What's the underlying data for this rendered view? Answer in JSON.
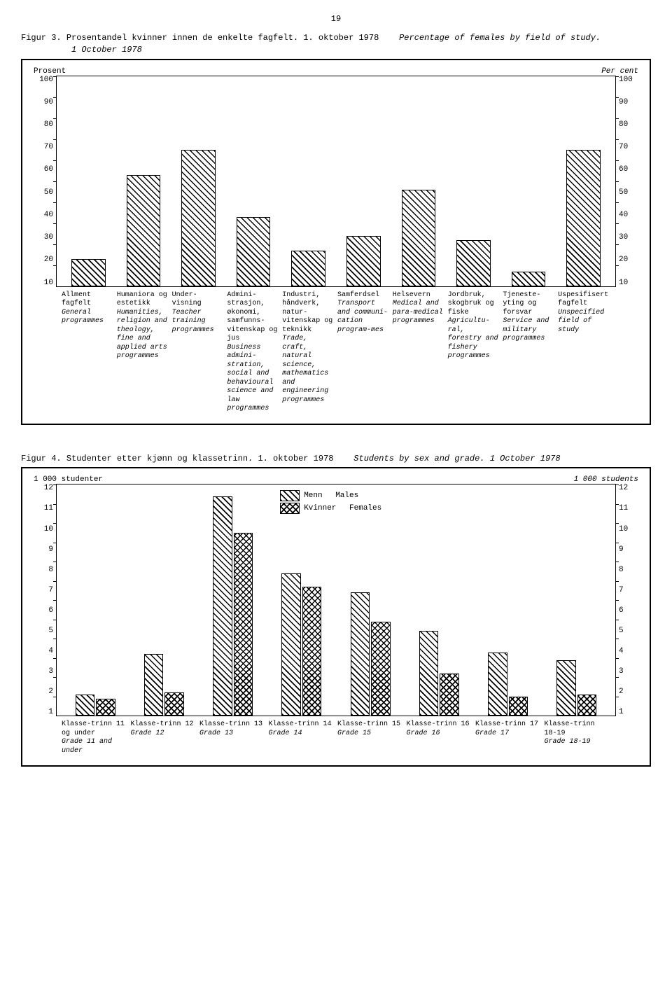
{
  "page_number": "19",
  "figure3": {
    "title_prefix": "Figur 3.",
    "title_main": "Prosentandel kvinner innen de enkelte fagfelt. 1. oktober 1978",
    "title_italic": "Percentage of females by field of study.",
    "subtitle_italic": "1 October 1978",
    "y_left_label": "Prosent",
    "y_right_label": "Per cent",
    "type": "bar",
    "ylim": [
      0,
      100
    ],
    "ytick_step": 10,
    "yticks": [
      "100",
      "90",
      "80",
      "70",
      "60",
      "50",
      "40",
      "30",
      "20",
      "10"
    ],
    "bar_fill": "hatch",
    "bar_border": "#000000",
    "background": "#ffffff",
    "categories": [
      {
        "value": 13,
        "nb": "Allment fagfelt",
        "en": "General programmes"
      },
      {
        "value": 53,
        "nb": "Humaniora og estetikk",
        "en": "Humanities, religion and theology, fine and applied arts programmes"
      },
      {
        "value": 65,
        "nb": "Under-visning",
        "en": "Teacher training programmes"
      },
      {
        "value": 33,
        "nb": "Admini-strasjon, økonomi, samfunns-vitenskap og jus",
        "en": "Business admini-stration, social and behavioural science and law programmes"
      },
      {
        "value": 17,
        "nb": "Industri, håndverk, natur-vitenskap og teknikk",
        "en": "Trade, craft, natural science, mathematics and engineering programmes"
      },
      {
        "value": 24,
        "nb": "Samferdsel",
        "en": "Transport and communi-cation program-mes"
      },
      {
        "value": 46,
        "nb": "Helsevern",
        "en": "Medical and para-medical programmes"
      },
      {
        "value": 22,
        "nb": "Jordbruk, skogbruk og fiske",
        "en": "Agricultu-ral, forestry and fishery programmes"
      },
      {
        "value": 7,
        "nb": "Tjeneste-yting og forsvar",
        "en": "Service and military programmes"
      },
      {
        "value": 65,
        "nb": "Uspesifisert fagfelt",
        "en": "Unspecified field of study"
      }
    ]
  },
  "figure4": {
    "title_prefix": "Figur 4.",
    "title_main": "Studenter etter kjønn og klassetrinn. 1. oktober 1978",
    "title_italic": "Students by sex and grade. 1 October 1978",
    "y_left_label": "1 000 studenter",
    "y_right_label": "1 000 students",
    "type": "grouped-bar",
    "ylim": [
      0,
      12
    ],
    "ytick_step": 1,
    "yticks": [
      "12",
      "11",
      "10",
      "9",
      "8",
      "7",
      "6",
      "5",
      "4",
      "3",
      "2",
      "1"
    ],
    "series": [
      {
        "key": "males",
        "label_nb": "Menn",
        "label_en": "Males",
        "fill": "hatch"
      },
      {
        "key": "females",
        "label_nb": "Kvinner",
        "label_en": "Females",
        "fill": "cross"
      }
    ],
    "bar_border": "#000000",
    "background": "#ffffff",
    "categories": [
      {
        "males": 1.1,
        "females": 0.9,
        "nb": "Klasse-trinn 11 og under",
        "en": "Grade 11 and under"
      },
      {
        "males": 3.2,
        "females": 1.2,
        "nb": "Klasse-trinn 12",
        "en": "Grade 12"
      },
      {
        "males": 11.4,
        "females": 9.5,
        "nb": "Klasse-trinn 13",
        "en": "Grade 13"
      },
      {
        "males": 7.4,
        "females": 6.7,
        "nb": "Klasse-trinn 14",
        "en": "Grade 14"
      },
      {
        "males": 6.4,
        "females": 4.9,
        "nb": "Klasse-trinn 15",
        "en": "Grade 15"
      },
      {
        "males": 4.4,
        "females": 2.2,
        "nb": "Klasse-trinn 16",
        "en": "Grade 16"
      },
      {
        "males": 3.3,
        "females": 1.0,
        "nb": "Klasse-trinn 17",
        "en": "Grade 17"
      },
      {
        "males": 2.9,
        "females": 1.1,
        "nb": "Klasse-trinn 18-19",
        "en": "Grade 18-19"
      }
    ]
  }
}
